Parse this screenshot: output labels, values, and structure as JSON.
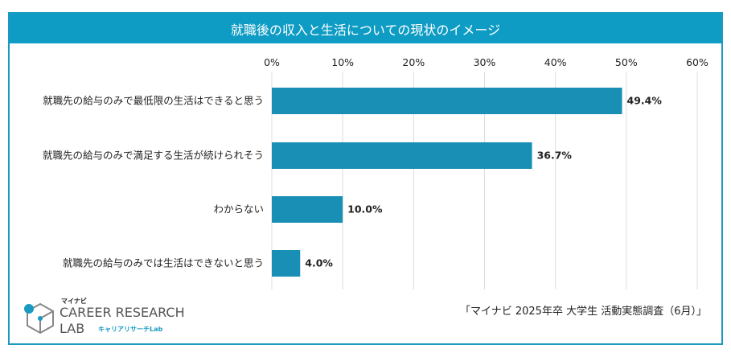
{
  "chart_data": {
    "type": "bar",
    "orientation": "horizontal",
    "title": "就職後の収入と生活についての現状のイメージ",
    "categories": [
      "就職先の給与のみで最低限の生活はできると思う",
      "就職先の給与のみで満足する生活が続けられそう",
      "わからない",
      "就職先の給与のみでは生活はできないと思う"
    ],
    "values": [
      49.4,
      36.7,
      10.0,
      4.0
    ],
    "value_labels": [
      "49.4%",
      "36.7%",
      "10.0%",
      "4.0%"
    ],
    "xlim": [
      0,
      60
    ],
    "ticks": [
      "0%",
      "10%",
      "20%",
      "30%",
      "40%",
      "50%",
      "60%"
    ],
    "grid": true,
    "bar_color": "#1a8fb5"
  },
  "footer": {
    "source": "「マイナビ 2025年卒 大学生 活動実態調査（6月）」",
    "logo_brand": "マイナビ",
    "logo_line1": "CAREER RESEARCH",
    "logo_line2": "LAB",
    "logo_sub": "キャリアリサーチLab"
  }
}
